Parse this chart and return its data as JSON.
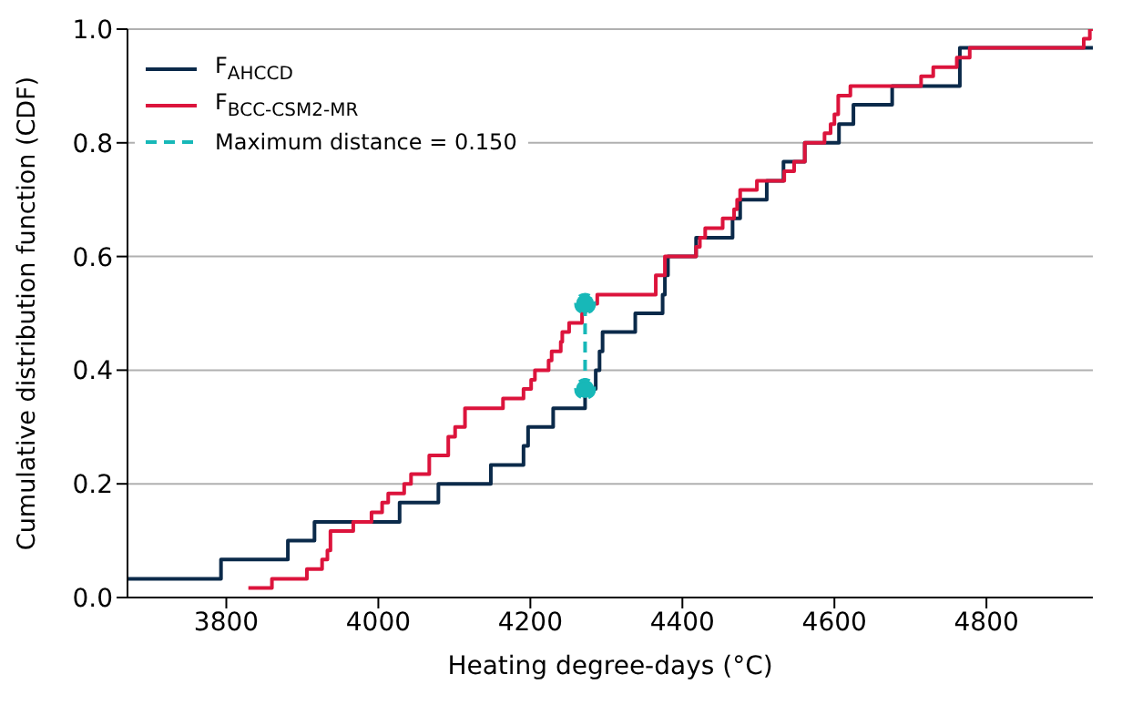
{
  "chart_data": {
    "type": "step",
    "xlabel": "Heating degree-days (°C)",
    "ylabel": "Cumulative distribution function (CDF)",
    "xlim": [
      3670,
      4940
    ],
    "xticks": [
      3800,
      4000,
      4200,
      4400,
      4600,
      4800
    ],
    "ylim": [
      0,
      1
    ],
    "yticks": [
      {
        "value": 0,
        "label": "0.0"
      },
      0.2,
      0.4,
      0.6,
      0.8,
      {
        "value": 1,
        "label": "1.0"
      }
    ],
    "grid": "y",
    "legend": "top left",
    "series": [
      {
        "name": "F$_{AHCCD}$",
        "color": "#0b2a4a",
        "type": "step",
        "x": [
          3670,
          3793,
          3881,
          3916,
          4028,
          4079,
          4148,
          4191,
          4197,
          4230,
          4272,
          4286,
          4291,
          4295,
          4338,
          4374,
          4377,
          4381,
          4418,
          4466,
          4476,
          4511,
          4533,
          4561,
          4606,
          4625,
          4676,
          4765,
          4940
        ],
        "values": [
          0.033,
          0.067,
          0.1,
          0.133,
          0.167,
          0.2,
          0.233,
          0.267,
          0.3,
          0.333,
          0.367,
          0.4,
          0.433,
          0.467,
          0.5,
          0.533,
          0.567,
          0.6,
          0.633,
          0.667,
          0.7,
          0.733,
          0.767,
          0.8,
          0.833,
          0.867,
          0.9,
          0.967,
          0.967
        ]
      },
      {
        "name": "F$_{BCC-CSM2-MR}$",
        "color": "#dc143c",
        "type": "step",
        "x": [
          3829,
          3860,
          3906,
          3926,
          3933,
          3937,
          3967,
          3991,
          4005,
          4013,
          4034,
          4043,
          4067,
          4092,
          4101,
          4114,
          4164,
          4191,
          4201,
          4206,
          4224,
          4228,
          4240,
          4242,
          4251,
          4268,
          4272,
          4288,
          4365,
          4377,
          4418,
          4423,
          4430,
          4453,
          4468,
          4472,
          4476,
          4498,
          4534,
          4547,
          4561,
          4587,
          4595,
          4600,
          4605,
          4621,
          4714,
          4730,
          4761,
          4778,
          4928,
          4936,
          4940
        ],
        "values": [
          0.017,
          0.033,
          0.05,
          0.067,
          0.083,
          0.117,
          0.133,
          0.15,
          0.167,
          0.183,
          0.2,
          0.217,
          0.25,
          0.283,
          0.3,
          0.333,
          0.35,
          0.367,
          0.383,
          0.4,
          0.417,
          0.433,
          0.45,
          0.467,
          0.483,
          0.5,
          0.517,
          0.533,
          0.567,
          0.6,
          0.617,
          0.633,
          0.65,
          0.667,
          0.683,
          0.7,
          0.717,
          0.733,
          0.75,
          0.767,
          0.8,
          0.817,
          0.833,
          0.85,
          0.883,
          0.9,
          0.917,
          0.933,
          0.95,
          0.967,
          0.983,
          1.0,
          1.0
        ]
      },
      {
        "name": "Maximum distance = 0.150",
        "color": "#17b8b8",
        "type": "line",
        "line_style": "dashed",
        "marker": "circle",
        "x": [
          4272,
          4272
        ],
        "values": [
          0.367,
          0.517
        ]
      }
    ]
  }
}
